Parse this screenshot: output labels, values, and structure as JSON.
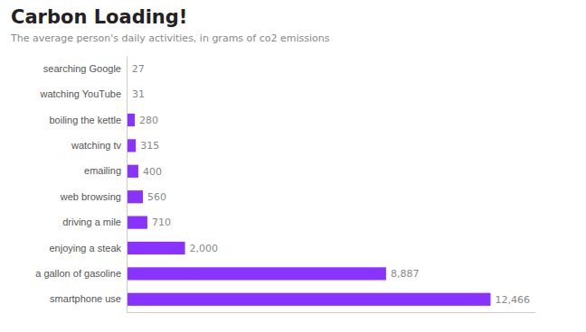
{
  "chart_data": {
    "type": "bar",
    "title": "Carbon Loading!",
    "subtitle": "The average person's daily activities, in grams of co2 emissions",
    "orientation": "horizontal",
    "categories": [
      "searching Google",
      "watching YouTube",
      "boiling the kettle",
      "watching tv",
      "emailing",
      "web browsing",
      "driving a mile",
      "enjoying a steak",
      "a gallon of gasoline",
      "smartphone use"
    ],
    "values": [
      27,
      31,
      280,
      315,
      400,
      560,
      710,
      2000,
      8887,
      12466
    ],
    "value_labels": [
      "27",
      "31",
      "280",
      "315",
      "400",
      "560",
      "710",
      "2,000",
      "8,887",
      "12,466"
    ],
    "data_labels": true,
    "color": "#8833ff",
    "xlim": [
      0,
      14000
    ],
    "tick_labels": "y",
    "grid": false
  }
}
